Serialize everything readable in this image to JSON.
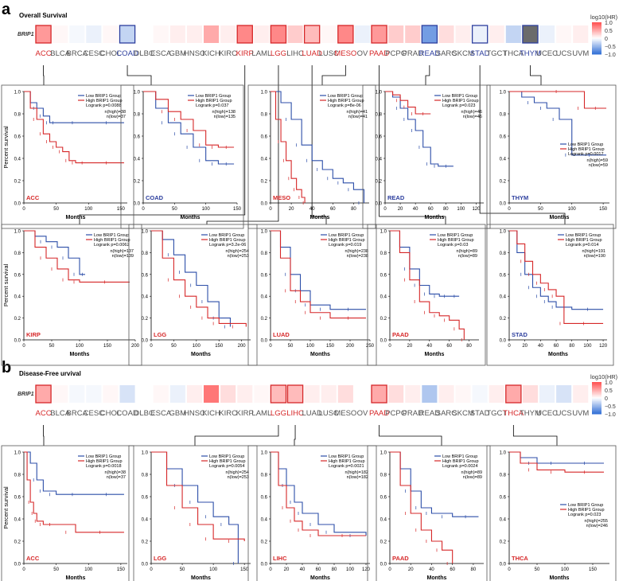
{
  "panel_a": {
    "letter": "a",
    "title": "Overall Survival",
    "gene_label": "BRIP1",
    "cancers": [
      "ACC",
      "BLCA",
      "BRCA",
      "CESC",
      "CHOL",
      "COAD",
      "DLBC",
      "ESCA",
      "GBM",
      "HNSC",
      "KICH",
      "KIRC",
      "KIRP",
      "LAML",
      "LGG",
      "LIHC",
      "LUAD",
      "LUSC",
      "MESO",
      "OV",
      "PAAD",
      "PCPG",
      "PRAD",
      "READ",
      "SARC",
      "SKCM",
      "STAD",
      "TGCT",
      "THCA",
      "THYM",
      "UCEC",
      "UCS",
      "UVM"
    ],
    "log_hr": [
      0.6,
      0.05,
      -0.05,
      -0.1,
      0.05,
      -0.3,
      0.0,
      0.05,
      0.1,
      0.1,
      0.5,
      0.1,
      0.7,
      0.1,
      0.7,
      0.3,
      0.4,
      0.05,
      0.7,
      -0.1,
      0.6,
      0.3,
      0.3,
      -0.7,
      0.2,
      0.1,
      -0.1,
      0.1,
      -0.3,
      -1.0,
      -0.1,
      0.05,
      0.1
    ],
    "highlight": {
      "ACC": "red",
      "COAD": "blue",
      "KIRP": "red",
      "LGG": "red",
      "LUAD": "red",
      "MESO": "red",
      "PAAD": "red",
      "READ": "blue",
      "STAD": "blue",
      "THYM": "blue"
    }
  },
  "panel_b": {
    "letter": "b",
    "title": "Disease-Free urvival",
    "gene_label": "BRIP1",
    "cancers": [
      "ACC",
      "BLCA",
      "BRCA",
      "CESC",
      "CHOL",
      "COAD",
      "DLBC",
      "ESCA",
      "GBM",
      "HNSC",
      "KICH",
      "KIRC",
      "KIRP",
      "LAML",
      "LGG",
      "LIHC",
      "LUAD",
      "LUSC",
      "MESO",
      "OV",
      "PAAD",
      "PCPG",
      "PRAD",
      "READ",
      "SARC",
      "SKCM",
      "STAD",
      "TGCT",
      "THCA",
      "THYM",
      "UCEC",
      "UCS",
      "UVM"
    ],
    "log_hr": [
      0.5,
      0.05,
      -0.05,
      -0.05,
      0.05,
      -0.2,
      0.0,
      0.05,
      -0.1,
      0.1,
      0.8,
      0.2,
      0.1,
      0.05,
      0.4,
      0.4,
      0.1,
      0.1,
      0.2,
      0.0,
      0.5,
      0.2,
      0.1,
      -0.4,
      0.1,
      0.05,
      -0.05,
      0.1,
      0.5,
      0.2,
      -0.1,
      -0.2,
      0.1
    ],
    "highlight": {
      "ACC": "red",
      "LGG": "red",
      "LIHC": "red",
      "PAAD": "red",
      "THCA": "red"
    }
  },
  "colorbar": {
    "title": "log10(HR)",
    "ticks": [
      "1.0",
      "0.5",
      "0",
      "−0.5",
      "−1.0"
    ]
  },
  "labels": {
    "ylabel": "Percent survival",
    "xlabel": "Months"
  },
  "legend": {
    "low": "Low BRIP1 Group",
    "high": "High BRIP1 Group"
  },
  "chart_data": [
    {
      "type": "line",
      "cancer": "ACC",
      "logrank": "Logrank p=0.0088",
      "n_high": "n(high)=38",
      "n_low": "n(low)=37",
      "xlim": [
        0,
        160
      ],
      "xticks": [
        0,
        50,
        100,
        150
      ],
      "ylim": [
        0,
        1
      ],
      "series": [
        {
          "name": "Low BRIP1 Group",
          "x": [
            0,
            10,
            20,
            30,
            40,
            50,
            100,
            155
          ],
          "y": [
            1,
            0.9,
            0.85,
            0.78,
            0.72,
            0.72,
            0.72,
            0.72
          ]
        },
        {
          "name": "High BRIP1 Group",
          "x": [
            0,
            10,
            20,
            30,
            40,
            50,
            60,
            70,
            80,
            100,
            155
          ],
          "y": [
            1,
            0.85,
            0.75,
            0.62,
            0.55,
            0.5,
            0.46,
            0.38,
            0.36,
            0.36,
            0.36
          ]
        }
      ]
    },
    {
      "type": "line",
      "cancer": "COAD",
      "logrank": "Logrank p=0.037",
      "n_high": "n(high)=138",
      "n_low": "n(low)=135",
      "xlim": [
        0,
        150
      ],
      "xticks": [
        0,
        50,
        100,
        150
      ],
      "ylim": [
        0,
        1
      ],
      "series": [
        {
          "name": "Low BRIP1 Group",
          "x": [
            0,
            20,
            40,
            60,
            80,
            100,
            120,
            145
          ],
          "y": [
            1,
            0.85,
            0.72,
            0.62,
            0.5,
            0.38,
            0.35,
            0.35
          ]
        },
        {
          "name": "High BRIP1 Group",
          "x": [
            0,
            20,
            40,
            60,
            80,
            100,
            120,
            145
          ],
          "y": [
            1,
            0.93,
            0.82,
            0.75,
            0.65,
            0.52,
            0.5,
            0.5
          ]
        }
      ]
    },
    {
      "type": "line",
      "cancer": "MESO",
      "logrank": "Logrank p=8e-06",
      "n_high": "n(high)=41",
      "n_low": "n(low)=41",
      "xlim": [
        0,
        95
      ],
      "xticks": [
        0,
        20,
        40,
        60,
        80
      ],
      "ylim": [
        0,
        1
      ],
      "series": [
        {
          "name": "Low BRIP1 Group",
          "x": [
            0,
            10,
            20,
            30,
            40,
            50,
            60,
            70,
            80,
            90
          ],
          "y": [
            1,
            0.9,
            0.75,
            0.52,
            0.38,
            0.3,
            0.22,
            0.18,
            0.12,
            0.0
          ]
        },
        {
          "name": "High BRIP1 Group",
          "x": [
            0,
            5,
            10,
            15,
            20,
            25,
            30,
            33
          ],
          "y": [
            1,
            0.75,
            0.55,
            0.38,
            0.22,
            0.12,
            0.05,
            0.0
          ]
        }
      ]
    },
    {
      "type": "line",
      "cancer": "READ",
      "logrank": "Logrank p=0.023",
      "n_high": "n(high)=46",
      "n_low": "n(low)=46",
      "xlim": [
        0,
        130
      ],
      "xticks": [
        0,
        20,
        40,
        60,
        80,
        100,
        120
      ],
      "ylim": [
        0,
        1
      ],
      "series": [
        {
          "name": "Low BRIP1 Group",
          "x": [
            0,
            10,
            20,
            30,
            40,
            50,
            60,
            70,
            90
          ],
          "y": [
            1,
            0.95,
            0.85,
            0.75,
            0.65,
            0.5,
            0.35,
            0.33,
            0.33
          ]
        },
        {
          "name": "High BRIP1 Group",
          "x": [
            0,
            10,
            20,
            30,
            40,
            60
          ],
          "y": [
            1,
            0.97,
            0.92,
            0.86,
            0.8,
            0.8
          ]
        }
      ]
    },
    {
      "type": "line",
      "cancer": "THYM",
      "logrank": "Logrank p=0.0017",
      "n_high": "n(high)=59",
      "n_low": "n(low)=59",
      "xlim": [
        0,
        160
      ],
      "xticks": [
        0,
        50,
        100,
        150
      ],
      "ylim": [
        0,
        1
      ],
      "series": [
        {
          "name": "Low BRIP1 Group",
          "x": [
            0,
            20,
            40,
            60,
            80,
            100,
            155
          ],
          "y": [
            1,
            0.95,
            0.9,
            0.85,
            0.75,
            0.43,
            0.43
          ]
        },
        {
          "name": "High BRIP1 Group",
          "x": [
            0,
            50,
            100,
            120,
            155
          ],
          "y": [
            1,
            1,
            1,
            0.85,
            0.85
          ]
        }
      ]
    },
    {
      "type": "line",
      "cancer": "KIRP",
      "logrank": "Logrank p=0.0062",
      "n_high": "n(high)=137",
      "n_low": "n(low)=139",
      "xlim": [
        0,
        200
      ],
      "xticks": [
        0,
        50,
        100,
        150,
        200
      ],
      "ylim": [
        0,
        1
      ],
      "series": [
        {
          "name": "Low BRIP1 Group",
          "x": [
            0,
            20,
            40,
            60,
            80,
            100,
            110
          ],
          "y": [
            1,
            0.95,
            0.9,
            0.85,
            0.75,
            0.6,
            0.6
          ]
        },
        {
          "name": "High BRIP1 Group",
          "x": [
            0,
            20,
            40,
            60,
            80,
            100,
            190
          ],
          "y": [
            1,
            0.85,
            0.75,
            0.65,
            0.55,
            0.53,
            0.53
          ]
        }
      ]
    },
    {
      "type": "line",
      "cancer": "LGG",
      "logrank": "Logrank p=3.2e-06",
      "n_high": "n(high)=254",
      "n_low": "n(low)=253",
      "xlim": [
        0,
        220
      ],
      "xticks": [
        0,
        50,
        100,
        150,
        200
      ],
      "ylim": [
        0,
        1
      ],
      "series": [
        {
          "name": "Low BRIP1 Group",
          "x": [
            0,
            25,
            50,
            75,
            100,
            125,
            150,
            175
          ],
          "y": [
            1,
            0.92,
            0.78,
            0.62,
            0.5,
            0.35,
            0.2,
            0.12
          ]
        },
        {
          "name": "High BRIP1 Group",
          "x": [
            0,
            25,
            50,
            75,
            100,
            125,
            150,
            210
          ],
          "y": [
            1,
            0.75,
            0.55,
            0.4,
            0.3,
            0.2,
            0.15,
            0.12
          ]
        }
      ]
    },
    {
      "type": "line",
      "cancer": "LUAD",
      "logrank": "Logrank p=0.019",
      "n_high": "n(high)=238",
      "n_low": "n(low)=238",
      "xlim": [
        0,
        250
      ],
      "xticks": [
        0,
        50,
        100,
        150,
        200,
        250
      ],
      "ylim": [
        0,
        1
      ],
      "series": [
        {
          "name": "Low BRIP1 Group",
          "x": [
            0,
            25,
            50,
            75,
            100,
            150,
            240
          ],
          "y": [
            1,
            0.85,
            0.6,
            0.45,
            0.32,
            0.28,
            0.28
          ]
        },
        {
          "name": "High BRIP1 Group",
          "x": [
            0,
            25,
            50,
            75,
            100,
            150,
            240
          ],
          "y": [
            1,
            0.75,
            0.45,
            0.35,
            0.25,
            0.2,
            0.2
          ]
        }
      ]
    },
    {
      "type": "line",
      "cancer": "PAAD",
      "logrank": "Logrank p=0.03",
      "n_high": "n(high)=89",
      "n_low": "n(low)=89",
      "xlim": [
        0,
        90
      ],
      "xticks": [
        0,
        20,
        40,
        60,
        80
      ],
      "ylim": [
        0,
        1
      ],
      "series": [
        {
          "name": "Low BRIP1 Group",
          "x": [
            0,
            10,
            20,
            30,
            40,
            50,
            60,
            70
          ],
          "y": [
            1,
            0.85,
            0.65,
            0.5,
            0.42,
            0.4,
            0.4,
            0.4
          ]
        },
        {
          "name": "High BRIP1 Group",
          "x": [
            0,
            10,
            20,
            30,
            40,
            50,
            60,
            70,
            75
          ],
          "y": [
            1,
            0.8,
            0.55,
            0.35,
            0.25,
            0.22,
            0.18,
            0.1,
            0.0
          ]
        }
      ]
    },
    {
      "type": "line",
      "cancer": "STAD",
      "logrank": "Logrank p=0.014",
      "n_high": "n(high)=191",
      "n_low": "n(low)=190",
      "xlim": [
        0,
        125
      ],
      "xticks": [
        0,
        20,
        40,
        60,
        80,
        100,
        120
      ],
      "ylim": [
        0,
        1
      ],
      "series": [
        {
          "name": "Low BRIP1 Group",
          "x": [
            0,
            10,
            20,
            30,
            40,
            50,
            60,
            80,
            120
          ],
          "y": [
            1,
            0.8,
            0.6,
            0.48,
            0.4,
            0.35,
            0.3,
            0.28,
            0.28
          ]
        },
        {
          "name": "High BRIP1 Group",
          "x": [
            0,
            10,
            20,
            30,
            40,
            50,
            60,
            70,
            120
          ],
          "y": [
            1,
            0.88,
            0.72,
            0.6,
            0.52,
            0.46,
            0.4,
            0.15,
            0.15
          ]
        }
      ]
    },
    {
      "type": "line",
      "cancer": "ACC",
      "logrank": "Logrank p=0.0018",
      "n_high": "n(high)=38",
      "n_low": "n(low)=37",
      "xlim": [
        0,
        160
      ],
      "xticks": [
        0,
        50,
        100,
        150
      ],
      "ylim": [
        0,
        1
      ],
      "series": [
        {
          "name": "Low BRIP1 Group",
          "x": [
            0,
            10,
            20,
            30,
            50,
            100,
            155
          ],
          "y": [
            1,
            0.9,
            0.75,
            0.65,
            0.62,
            0.62,
            0.62
          ]
        },
        {
          "name": "High BRIP1 Group",
          "x": [
            0,
            5,
            10,
            15,
            20,
            30,
            50,
            80,
            155
          ],
          "y": [
            1,
            0.75,
            0.55,
            0.45,
            0.38,
            0.35,
            0.35,
            0.28,
            0.28
          ]
        }
      ]
    },
    {
      "type": "line",
      "cancer": "LGG",
      "logrank": "Logrank p=0.0054",
      "n_high": "n(high)=254",
      "n_low": "n(low)=253",
      "xlim": [
        0,
        160
      ],
      "xticks": [
        0,
        50,
        100,
        150
      ],
      "ylim": [
        0,
        1
      ],
      "series": [
        {
          "name": "Low BRIP1 Group",
          "x": [
            0,
            25,
            50,
            75,
            100,
            125,
            140
          ],
          "y": [
            1,
            0.85,
            0.7,
            0.55,
            0.42,
            0.35,
            0.0
          ]
        },
        {
          "name": "High BRIP1 Group",
          "x": [
            0,
            25,
            50,
            75,
            100,
            150
          ],
          "y": [
            1,
            0.7,
            0.5,
            0.35,
            0.22,
            0.2
          ]
        }
      ]
    },
    {
      "type": "line",
      "cancer": "LIHC",
      "logrank": "Logrank p=0.0021",
      "n_high": "n(high)=182",
      "n_low": "n(low)=182",
      "xlim": [
        0,
        125
      ],
      "xticks": [
        0,
        20,
        40,
        60,
        80,
        100,
        120
      ],
      "ylim": [
        0,
        1
      ],
      "series": [
        {
          "name": "Low BRIP1 Group",
          "x": [
            0,
            10,
            20,
            30,
            40,
            60,
            80,
            120
          ],
          "y": [
            1,
            0.85,
            0.7,
            0.55,
            0.45,
            0.35,
            0.28,
            0.25
          ]
        },
        {
          "name": "High BRIP1 Group",
          "x": [
            0,
            10,
            20,
            30,
            40,
            60,
            120
          ],
          "y": [
            1,
            0.7,
            0.5,
            0.38,
            0.3,
            0.25,
            0.25
          ]
        }
      ]
    },
    {
      "type": "line",
      "cancer": "PAAD",
      "logrank": "Logrank p=0.0024",
      "n_high": "n(high)=89",
      "n_low": "n(low)=89",
      "xlim": [
        0,
        90
      ],
      "xticks": [
        0,
        20,
        40,
        60,
        80
      ],
      "ylim": [
        0,
        1
      ],
      "series": [
        {
          "name": "Low BRIP1 Group",
          "x": [
            0,
            10,
            20,
            30,
            40,
            60,
            85
          ],
          "y": [
            1,
            0.85,
            0.65,
            0.5,
            0.45,
            0.42,
            0.42
          ]
        },
        {
          "name": "High BRIP1 Group",
          "x": [
            0,
            10,
            20,
            30,
            40,
            50,
            60
          ],
          "y": [
            1,
            0.7,
            0.45,
            0.3,
            0.2,
            0.12,
            0.0
          ]
        }
      ]
    },
    {
      "type": "line",
      "cancer": "THCA",
      "logrank": "Logrank p=0.023",
      "n_high": "n(high)=255",
      "n_low": "n(low)=246",
      "xlim": [
        0,
        180
      ],
      "xticks": [
        0,
        50,
        100,
        150
      ],
      "ylim": [
        0,
        1
      ],
      "series": [
        {
          "name": "Low BRIP1 Group",
          "x": [
            0,
            20,
            50,
            100,
            170
          ],
          "y": [
            1,
            0.95,
            0.9,
            0.9,
            0.9
          ]
        },
        {
          "name": "High BRIP1 Group",
          "x": [
            0,
            20,
            50,
            100,
            170
          ],
          "y": [
            1,
            0.9,
            0.84,
            0.82,
            0.82
          ]
        }
      ]
    }
  ]
}
